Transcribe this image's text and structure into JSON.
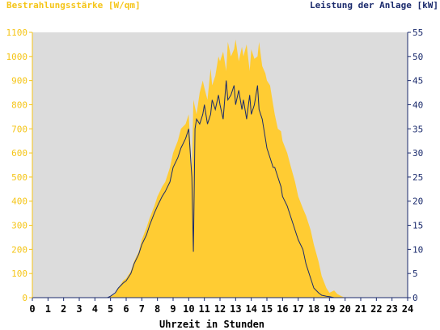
{
  "chart_data": {
    "type": "area",
    "title_left": "Bestrahlungsstärke [W/qm]",
    "title_right": "Leistung der Anlage [kW]",
    "xlabel": "Uhrzeit in Stunden",
    "x_ticks": [
      0,
      1,
      2,
      3,
      4,
      5,
      6,
      7,
      8,
      9,
      10,
      11,
      12,
      13,
      14,
      15,
      16,
      17,
      18,
      19,
      20,
      21,
      22,
      23,
      24
    ],
    "xlim": [
      0,
      24
    ],
    "y_left_ticks": [
      0,
      100,
      200,
      300,
      400,
      500,
      600,
      700,
      800,
      900,
      1000,
      1100
    ],
    "ylim_left": [
      0,
      1100
    ],
    "y_right_ticks": [
      0,
      5,
      10,
      15,
      20,
      25,
      30,
      35,
      40,
      45,
      50,
      55
    ],
    "ylim_right": [
      0,
      55
    ],
    "grid": false,
    "series": [
      {
        "name": "Bestrahlungsstärke [W/qm]",
        "axis": "left",
        "style": "filled-area",
        "color": "#ffcc33",
        "x": [
          4.8,
          5.0,
          5.3,
          5.5,
          5.8,
          6.0,
          6.3,
          6.5,
          6.8,
          7.0,
          7.3,
          7.5,
          7.8,
          8.0,
          8.3,
          8.5,
          8.8,
          9.0,
          9.3,
          9.5,
          9.8,
          10.0,
          10.2,
          10.3,
          10.5,
          10.7,
          10.9,
          11.0,
          11.2,
          11.4,
          11.5,
          11.7,
          11.9,
          12.0,
          12.2,
          12.4,
          12.5,
          12.7,
          12.9,
          13.0,
          13.2,
          13.4,
          13.5,
          13.7,
          13.9,
          14.0,
          14.2,
          14.4,
          14.5,
          14.7,
          14.9,
          15.0,
          15.2,
          15.4,
          15.5,
          15.7,
          15.9,
          16.0,
          16.3,
          16.5,
          16.8,
          17.0,
          17.3,
          17.5,
          17.8,
          18.0,
          18.3,
          18.5,
          18.8,
          19.0,
          19.3,
          19.5,
          19.8,
          20.0,
          20.3,
          20.5,
          20.7
        ],
        "values": [
          0,
          5,
          15,
          40,
          70,
          80,
          110,
          150,
          190,
          240,
          290,
          330,
          380,
          420,
          460,
          480,
          540,
          600,
          650,
          700,
          720,
          760,
          520,
          820,
          760,
          850,
          900,
          870,
          820,
          950,
          880,
          920,
          1000,
          980,
          1020,
          940,
          1060,
          1000,
          1030,
          1070,
          980,
          1040,
          1000,
          1050,
          940,
          1030,
          990,
          1000,
          1060,
          960,
          930,
          900,
          880,
          800,
          760,
          700,
          690,
          650,
          600,
          550,
          480,
          420,
          370,
          340,
          280,
          220,
          150,
          90,
          40,
          20,
          30,
          15,
          5,
          0,
          0,
          0,
          0
        ]
      },
      {
        "name": "Leistung der Anlage [kW]",
        "axis": "right",
        "style": "line",
        "color": "#1a2a6c",
        "x": [
          4.8,
          5.0,
          5.3,
          5.5,
          5.8,
          6.0,
          6.3,
          6.5,
          6.8,
          7.0,
          7.3,
          7.5,
          7.8,
          8.0,
          8.3,
          8.5,
          8.8,
          9.0,
          9.3,
          9.5,
          9.8,
          10.0,
          10.2,
          10.3,
          10.4,
          10.5,
          10.7,
          10.9,
          11.0,
          11.2,
          11.4,
          11.5,
          11.7,
          11.9,
          12.0,
          12.2,
          12.4,
          12.5,
          12.7,
          12.9,
          13.0,
          13.2,
          13.4,
          13.5,
          13.7,
          13.9,
          14.0,
          14.2,
          14.4,
          14.5,
          14.7,
          14.9,
          15.0,
          15.2,
          15.4,
          15.5,
          15.7,
          15.9,
          16.0,
          16.3,
          16.5,
          16.8,
          17.0,
          17.3,
          17.5,
          17.8,
          18.0,
          18.3,
          18.5,
          18.8,
          19.0,
          19.3,
          19.5,
          19.8,
          20.0,
          20.3,
          20.5,
          20.7
        ],
        "values": [
          0,
          0.3,
          1,
          2,
          3,
          3.5,
          5,
          7,
          9,
          11,
          13,
          15,
          17.5,
          19,
          21,
          22,
          24,
          27,
          29,
          31,
          33,
          35,
          25,
          9.5,
          35,
          37,
          36,
          38,
          40,
          36,
          38,
          41,
          39,
          42,
          40,
          37,
          45,
          41,
          42,
          44,
          40,
          43,
          39,
          41,
          37,
          42,
          38,
          40,
          44,
          39,
          37,
          33,
          31,
          29,
          27,
          27,
          25,
          23,
          21,
          19,
          17,
          14,
          12,
          10,
          7,
          4,
          2,
          1,
          0.5,
          0.3,
          0.2,
          0,
          0,
          0,
          0,
          0,
          0,
          0
        ]
      }
    ]
  }
}
